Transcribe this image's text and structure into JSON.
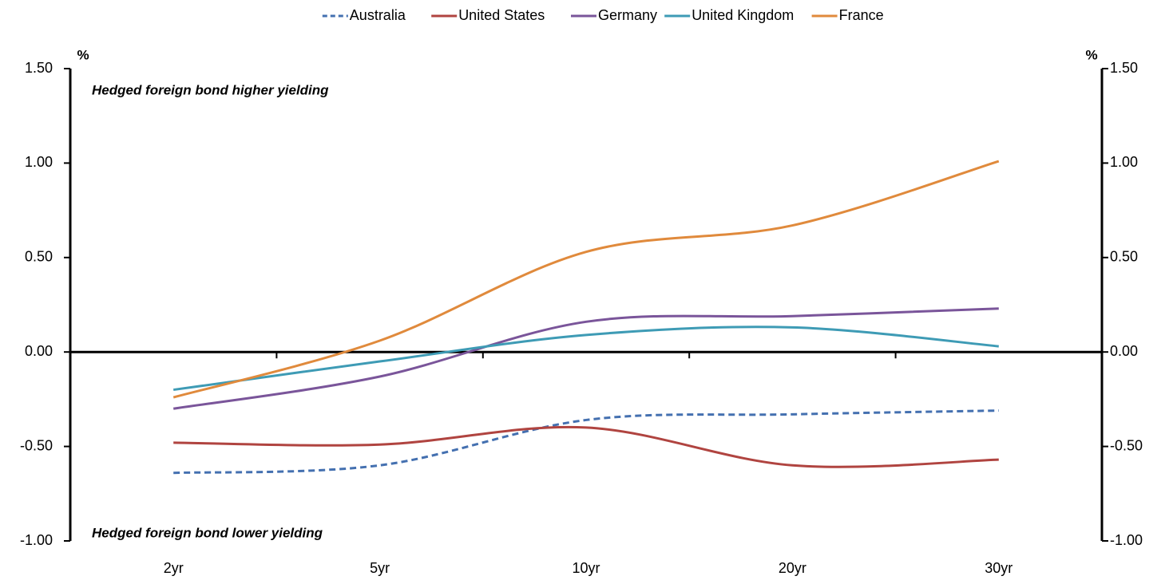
{
  "chart_data": {
    "type": "line",
    "categories": [
      "2yr",
      "5yr",
      "10yr",
      "20yr",
      "30yr"
    ],
    "series": [
      {
        "name": "Australia",
        "color": "#4470b0",
        "line_style": "dashed",
        "values": [
          -0.64,
          -0.6,
          -0.36,
          -0.33,
          -0.31
        ]
      },
      {
        "name": "United States",
        "color": "#b04440",
        "values": [
          -0.48,
          -0.49,
          -0.4,
          -0.6,
          -0.57
        ]
      },
      {
        "name": "Germany",
        "color": "#7a559a",
        "values": [
          -0.3,
          -0.13,
          0.16,
          0.19,
          0.23
        ]
      },
      {
        "name": "United Kingdom",
        "color": "#3e9bb5",
        "values": [
          -0.2,
          -0.05,
          0.09,
          0.13,
          0.03
        ]
      },
      {
        "name": "France",
        "color": "#e08a3c",
        "values": [
          -0.24,
          0.06,
          0.53,
          0.67,
          1.01
        ]
      }
    ],
    "ylabel": "%",
    "y2label": "%",
    "ylim": [
      -1,
      1.5
    ],
    "yticks": [
      {
        "value": -1,
        "label": "-1.00"
      },
      {
        "value": -0.5,
        "label": "-0.50"
      },
      {
        "value": 0,
        "label": "0.00"
      },
      {
        "value": 0.5,
        "label": "0.50"
      },
      {
        "value": 1,
        "label": "1.00"
      },
      {
        "value": 1.5,
        "label": "1.50"
      }
    ],
    "y2lim": [
      -1,
      1.5
    ],
    "y2ticks": [
      {
        "value": -1,
        "label": "-1.00"
      },
      {
        "value": -0.5,
        "label": "-0.50"
      },
      {
        "value": 0,
        "label": "0.00"
      },
      {
        "value": 0.5,
        "label": "0.50"
      },
      {
        "value": 1,
        "label": "1.00"
      },
      {
        "value": 1.5,
        "label": "1.50"
      }
    ],
    "annotations": [
      "Hedged foreign bond higher yielding",
      "Hedged foreign bond lower yielding"
    ],
    "legend": "top"
  }
}
